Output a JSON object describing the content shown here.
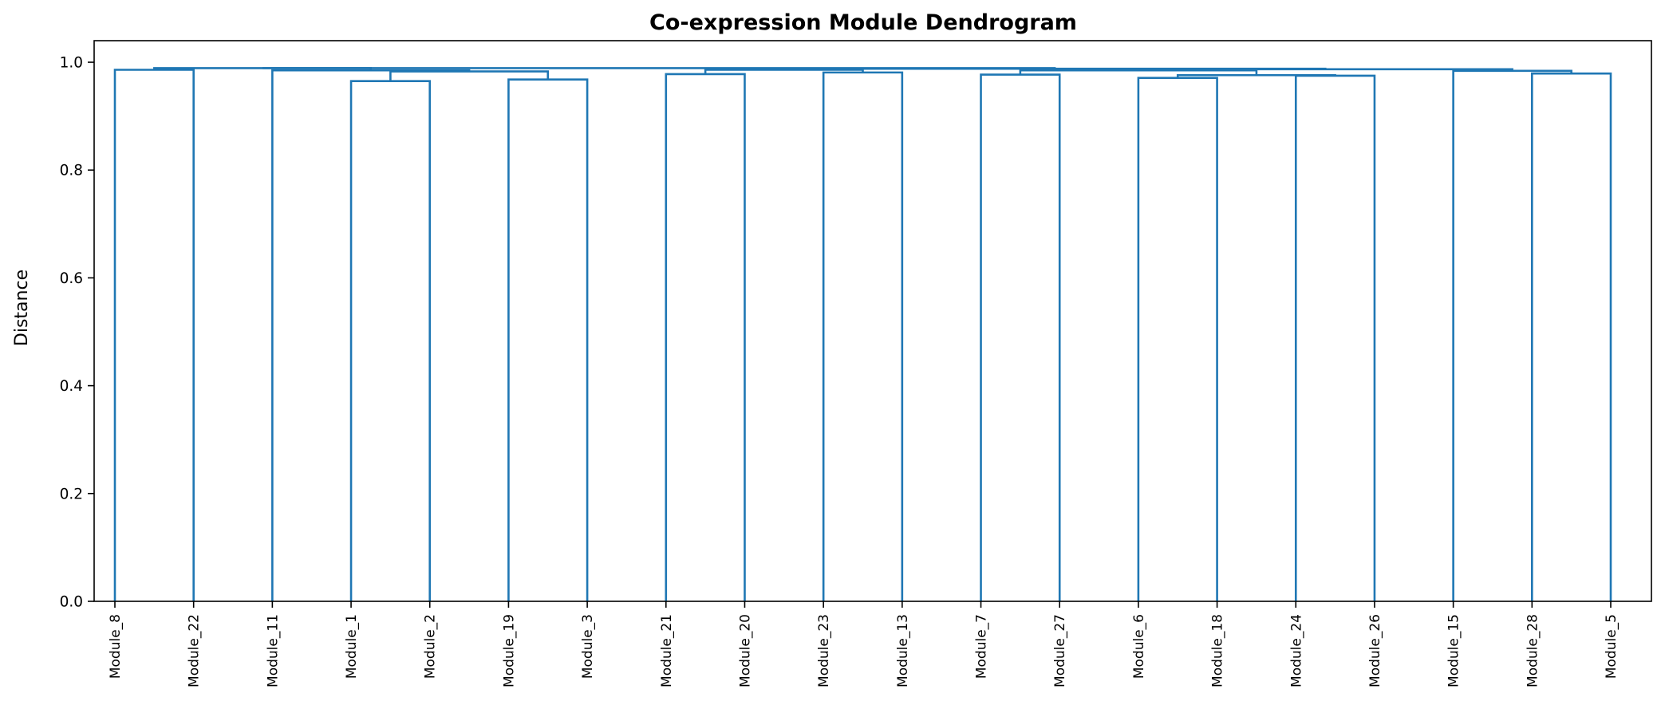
{
  "chart_data": {
    "type": "dendrogram",
    "title": "Co-expression Module Dendrogram",
    "xlabel": "",
    "ylabel": "Distance",
    "ylim": [
      0,
      1.04
    ],
    "yticks": [
      "0.0",
      "0.2",
      "0.4",
      "0.6",
      "0.8",
      "1.0"
    ],
    "ytick_values": [
      0,
      0.2,
      0.4,
      0.6,
      0.8,
      1.0
    ],
    "grid": false,
    "link_color": "#1f77b4",
    "leaves": [
      "Module_8",
      "Module_22",
      "Module_11",
      "Module_1",
      "Module_2",
      "Module_19",
      "Module_3",
      "Module_21",
      "Module_20",
      "Module_23",
      "Module_13",
      "Module_7",
      "Module_27",
      "Module_6",
      "Module_18",
      "Module_24",
      "Module_26",
      "Module_15",
      "Module_28",
      "Module_5"
    ],
    "merges": [
      {
        "left": "Module_1",
        "right": "Module_2",
        "height": 0.965
      },
      {
        "left": "Module_19",
        "right": "Module_3",
        "height": 0.968
      },
      {
        "left": "Module_6",
        "right": "Module_18",
        "height": 0.971
      },
      {
        "left": "Module_24",
        "right": "Module_26",
        "height": 0.975
      },
      {
        "left": "Module_7",
        "right": "Module_27",
        "height": 0.977
      },
      {
        "left": "Module_21",
        "right": "Module_20",
        "height": 0.978
      },
      {
        "left": "Module_28",
        "right": "Module_5",
        "height": 0.979
      },
      {
        "left": "Module_23",
        "right": "Module_13",
        "height": 0.981
      },
      {
        "left": "(Module_6, Module_18)",
        "right": "(Module_24, Module_26)",
        "height": 0.976
      },
      {
        "left": "(Module_1, Module_2)",
        "right": "(Module_19, Module_3)",
        "height": 0.983
      },
      {
        "left": "Module_15",
        "right": "(Module_28, Module_5)",
        "height": 0.984
      },
      {
        "left": "Module_11",
        "right": "((Module_1, Module_2), (Module_19, Module_3))",
        "height": 0.985
      },
      {
        "left": "Module_8",
        "right": "Module_22",
        "height": 0.986
      },
      {
        "left": "(Module_21, Module_20)",
        "right": "(Module_23, Module_13)",
        "height": 0.986
      },
      {
        "left": "(Module_7, Module_27)",
        "right": "((Module_6, Module_18), (Module_24, Module_26))",
        "height": 0.985
      },
      {
        "left": "((Module_7, Module_27), (...))",
        "right": "(Module_15, (Module_28, Module_5))",
        "height": 0.987
      },
      {
        "left": "((Module_21, Module_20), (Module_23, Module_13))",
        "right": "(((Module_7, ...), (Module_15, ...)))",
        "height": 0.988
      },
      {
        "left": "(Module_8, Module_22)",
        "right": "(Module_11, ...)",
        "height": 0.989
      },
      {
        "left": "((Module_8, Module_22), (Module_11, ...))",
        "right": "((Module_21, ...), (...))",
        "height": 0.989
      }
    ]
  }
}
